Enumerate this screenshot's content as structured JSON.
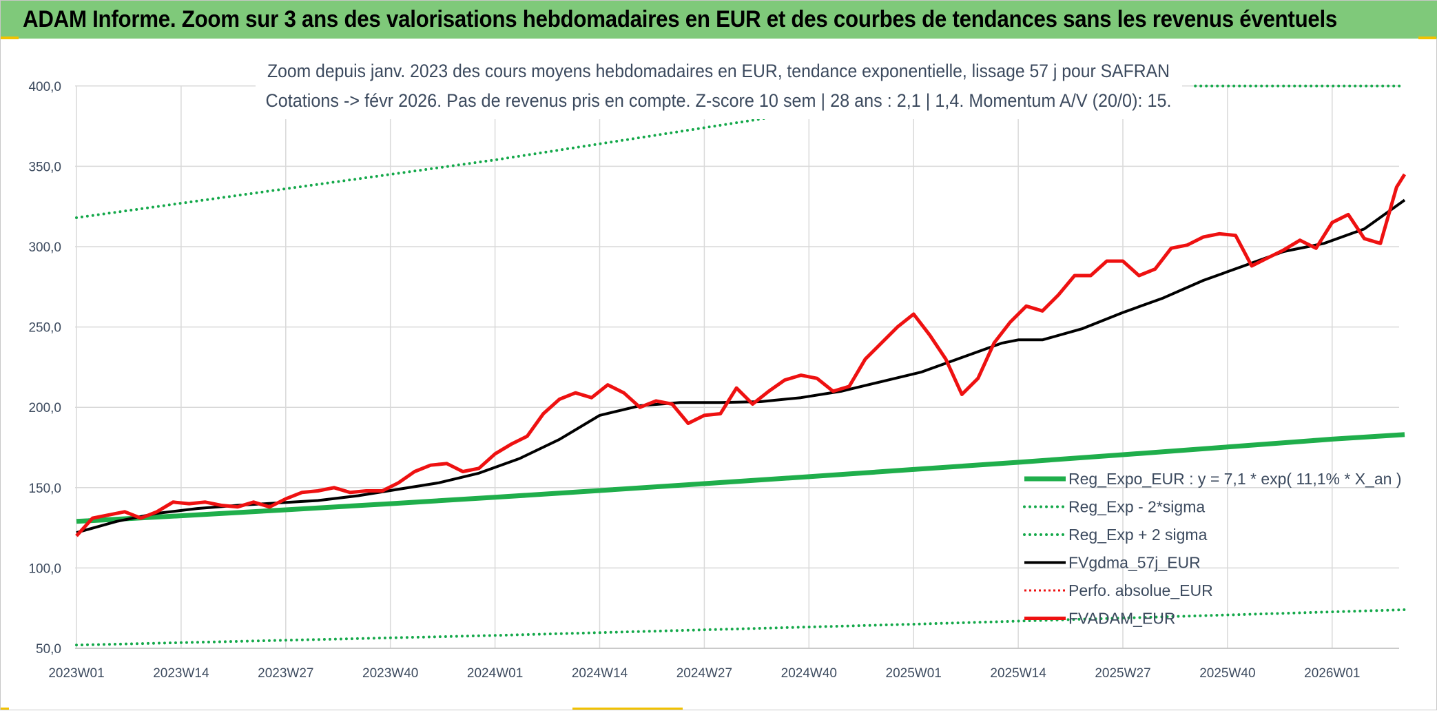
{
  "banner": {
    "title": "ADAM Informe. Zoom sur 3 ans des valorisations hebdomadaires en EUR et des courbes de tendances sans les revenus éventuels"
  },
  "colors": {
    "banner_bg": "#7fc97a",
    "green": "#1fae4b",
    "dotted_green": "#14a84a",
    "black": "#000000",
    "red": "#ee1111",
    "grid": "#d9d9d9",
    "text": "#3c4a5e"
  },
  "chart_data": {
    "type": "line",
    "title_line1": "Zoom depuis janv. 2023 des cours moyens hebdomadaires en EUR, tendance exponentielle, lissage 57 j pour SAFRAN",
    "title_line2": "Cotations -> févr 2026. Pas de revenus pris en compte. Z-score 10 sem | 28 ans : 2,1 | 1,4. Momentum A/V (20/0): 15.",
    "ylim": [
      50,
      400
    ],
    "y_ticks": [
      "50,0",
      "100,0",
      "150,0",
      "200,0",
      "250,0",
      "300,0",
      "350,0",
      "400,0"
    ],
    "x_ticks": [
      "2023W01",
      "2023W14",
      "2023W27",
      "2023W40",
      "2024W01",
      "2024W14",
      "2024W27",
      "2024W40",
      "2025W01",
      "2025W14",
      "2025W27",
      "2025W40",
      "2026W01"
    ],
    "grid": true,
    "legend_position": "bottom-right",
    "legend": [
      {
        "key": "reg",
        "label": "Reg_Expo_EUR : y = 7,1 * exp( 11,1% *  X_an )"
      },
      {
        "key": "lower",
        "label": "Reg_Exp - 2*sigma"
      },
      {
        "key": "upper",
        "label": "Reg_Exp + 2 sigma"
      },
      {
        "key": "smooth",
        "label": "FVgdma_57j_EUR"
      },
      {
        "key": "perfo",
        "label": "Perfo. absolue_EUR"
      },
      {
        "key": "price",
        "label": "FVADAM_EUR"
      }
    ],
    "series": [
      {
        "name": "Reg_Expo_EUR",
        "x": [
          0,
          13,
          26,
          39,
          52,
          65,
          78,
          91,
          104,
          117,
          130,
          143,
          156,
          165
        ],
        "values": [
          129,
          132.5,
          136.2,
          140,
          144,
          148.2,
          152.5,
          156.8,
          161.3,
          165.8,
          170.5,
          175.3,
          180.2,
          183
        ]
      },
      {
        "name": "Reg_Exp - 2*sigma",
        "x": [
          0,
          52,
          104,
          165
        ],
        "values": [
          52,
          58,
          65,
          74
        ]
      },
      {
        "name": "Reg_Exp + 2 sigma",
        "x": [
          0,
          13,
          26,
          39,
          52,
          65,
          78,
          87
        ],
        "values": [
          318,
          327,
          336,
          345,
          354,
          364,
          374,
          381
        ]
      },
      {
        "name": "Reg_Exp + 2 sigma (top)",
        "x": [
          139,
          165
        ],
        "values": [
          400,
          400
        ]
      },
      {
        "name": "FVgdma_57j_EUR",
        "x": [
          0,
          5,
          10,
          15,
          20,
          25,
          30,
          35,
          40,
          45,
          50,
          55,
          60,
          65,
          70,
          75,
          80,
          85,
          90,
          95,
          100,
          105,
          110,
          115,
          117,
          120,
          125,
          130,
          135,
          140,
          145,
          150,
          155,
          160,
          165
        ],
        "values": [
          122,
          129,
          134,
          137,
          139,
          140.5,
          142,
          145,
          149,
          153,
          159,
          168,
          180,
          195,
          201,
          203,
          203,
          203.5,
          206,
          210,
          216,
          222,
          231,
          240,
          242,
          242,
          249,
          259,
          268,
          279,
          288,
          297,
          302,
          311,
          329
        ]
      },
      {
        "name": "FVADAM_EUR",
        "x": [
          0,
          2,
          4,
          6,
          8,
          10,
          12,
          14,
          16,
          18,
          20,
          22,
          24,
          26,
          28,
          30,
          32,
          34,
          36,
          38,
          40,
          42,
          44,
          46,
          48,
          50,
          52,
          54,
          56,
          58,
          60,
          62,
          64,
          66,
          68,
          70,
          72,
          74,
          76,
          78,
          80,
          82,
          84,
          86,
          88,
          90,
          92,
          94,
          96,
          98,
          100,
          102,
          104,
          106,
          108,
          110,
          112,
          114,
          116,
          118,
          120,
          122,
          124,
          126,
          128,
          130,
          132,
          134,
          136,
          138,
          140,
          142,
          144,
          146,
          148,
          150,
          152,
          154,
          156,
          158,
          160,
          162,
          164,
          165
        ],
        "values": [
          120,
          131,
          133,
          135,
          131,
          135,
          141,
          140,
          141,
          139,
          138,
          141,
          138,
          143,
          147,
          148,
          150,
          147,
          148,
          148,
          153,
          160,
          164,
          165,
          160,
          162,
          171,
          177,
          182,
          196,
          205,
          209,
          206,
          214,
          209,
          200,
          204,
          202,
          190,
          195,
          196,
          212,
          202,
          210,
          217,
          220,
          218,
          210,
          213,
          230,
          240,
          250,
          258,
          245,
          230,
          208,
          218,
          240,
          253,
          263,
          260,
          270,
          282,
          282,
          291,
          291,
          282,
          286,
          299,
          301,
          306,
          308,
          307,
          288,
          293,
          298,
          304,
          299,
          315,
          320,
          305,
          302,
          337,
          345
        ]
      }
    ]
  }
}
